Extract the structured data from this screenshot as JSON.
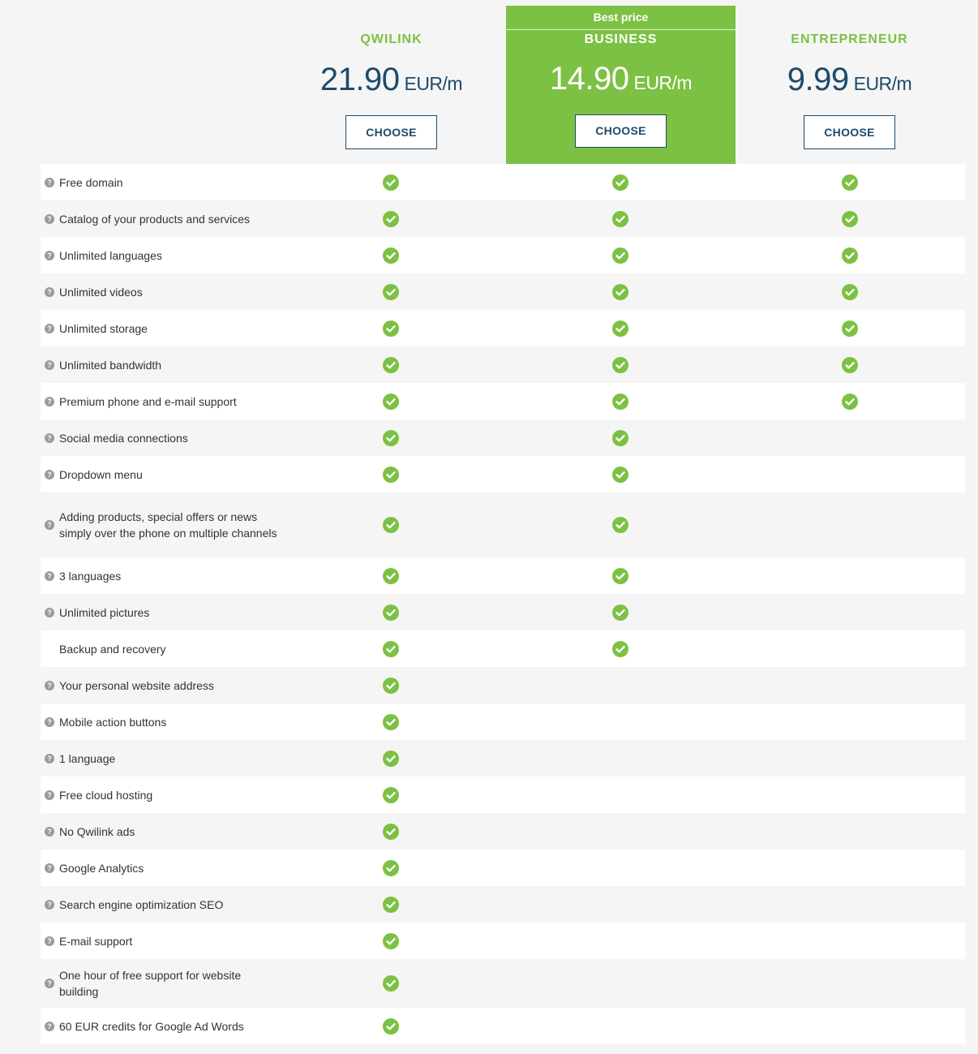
{
  "colors": {
    "accent": "#7cc143",
    "navy": "#1e4a6a",
    "check": "#7cc143"
  },
  "plans": [
    {
      "name": "QWILINK",
      "amount": "21.90",
      "unit": "EUR/m",
      "button": "CHOOSE"
    },
    {
      "badge": "Best price",
      "name": "BUSINESS",
      "amount": "14.90",
      "unit": "EUR/m",
      "button": "CHOOSE"
    },
    {
      "name": "ENTREPRENEUR",
      "amount": "9.99",
      "unit": "EUR/m",
      "button": "CHOOSE"
    }
  ],
  "features": [
    {
      "label": "Free domain",
      "help": true,
      "included": [
        true,
        true,
        true
      ]
    },
    {
      "label": "Catalog of your products and services",
      "help": true,
      "included": [
        true,
        true,
        true
      ]
    },
    {
      "label": "Unlimited languages",
      "help": true,
      "included": [
        true,
        true,
        true
      ]
    },
    {
      "label": "Unlimited videos",
      "help": true,
      "included": [
        true,
        true,
        true
      ]
    },
    {
      "label": "Unlimited storage",
      "help": true,
      "included": [
        true,
        true,
        true
      ]
    },
    {
      "label": "Unlimited bandwidth",
      "help": true,
      "included": [
        true,
        true,
        true
      ]
    },
    {
      "label": "Premium phone and e-mail support",
      "help": true,
      "included": [
        true,
        true,
        true
      ]
    },
    {
      "label": "Social media connections",
      "help": true,
      "included": [
        true,
        true,
        false
      ]
    },
    {
      "label": "Dropdown menu",
      "help": true,
      "included": [
        true,
        true,
        false
      ]
    },
    {
      "label": "Adding products, special offers or news simply over the phone on multiple channels",
      "help": true,
      "included": [
        true,
        true,
        false
      ]
    },
    {
      "label": "3 languages",
      "help": true,
      "included": [
        true,
        true,
        false
      ]
    },
    {
      "label": "Unlimited pictures",
      "help": true,
      "included": [
        true,
        true,
        false
      ]
    },
    {
      "label": "Backup and recovery",
      "help": false,
      "included": [
        true,
        true,
        false
      ]
    },
    {
      "label": "Your personal website address",
      "help": true,
      "included": [
        true,
        false,
        false
      ]
    },
    {
      "label": "Mobile action buttons",
      "help": true,
      "included": [
        true,
        false,
        false
      ]
    },
    {
      "label": "1 language",
      "help": true,
      "included": [
        true,
        false,
        false
      ]
    },
    {
      "label": "Free cloud hosting",
      "help": true,
      "included": [
        true,
        false,
        false
      ]
    },
    {
      "label": "No Qwilink ads",
      "help": true,
      "included": [
        true,
        false,
        false
      ]
    },
    {
      "label": "Google Analytics",
      "help": true,
      "included": [
        true,
        false,
        false
      ]
    },
    {
      "label": "Search engine optimization SEO",
      "help": true,
      "included": [
        true,
        false,
        false
      ]
    },
    {
      "label": "E-mail support",
      "help": true,
      "included": [
        true,
        false,
        false
      ]
    },
    {
      "label": "One hour of free support for website building",
      "help": true,
      "included": [
        true,
        false,
        false
      ]
    },
    {
      "label": "60 EUR credits for Google Ad Words",
      "help": true,
      "included": [
        true,
        false,
        false
      ]
    }
  ]
}
